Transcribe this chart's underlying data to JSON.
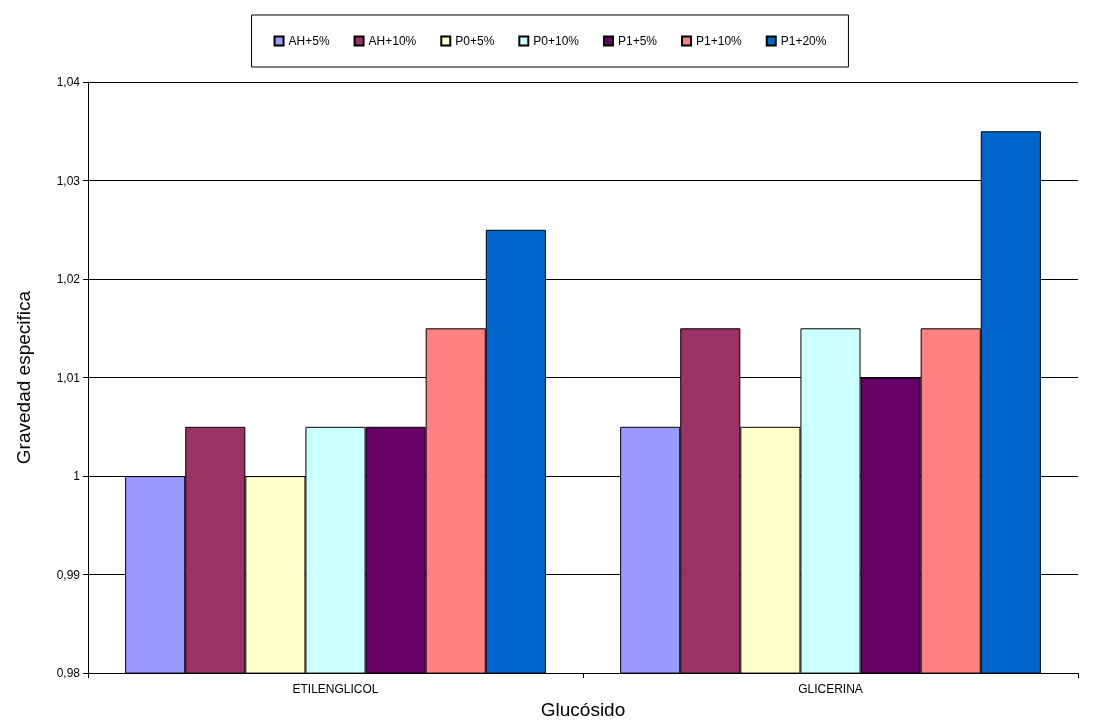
{
  "chart_data": {
    "type": "bar",
    "xlabel": "Glucósido",
    "ylabel": "Gravedad especifica",
    "categories": [
      "ETILENGLICOL",
      "GLICERINA"
    ],
    "series": [
      {
        "name": "AH+5%",
        "color": "#9999ff",
        "values": [
          1.0,
          1.005
        ]
      },
      {
        "name": "AH+10%",
        "color": "#993366",
        "values": [
          1.005,
          1.015
        ]
      },
      {
        "name": "P0+5%",
        "color": "#ffffcc",
        "values": [
          1.0,
          1.005
        ]
      },
      {
        "name": "P0+10%",
        "color": "#ccffff",
        "values": [
          1.005,
          1.015
        ]
      },
      {
        "name": "P1+5%",
        "color": "#660066",
        "values": [
          1.005,
          1.01
        ]
      },
      {
        "name": "P1+10%",
        "color": "#ff8080",
        "values": [
          1.015,
          1.015
        ]
      },
      {
        "name": "P1+20%",
        "color": "#0066cc",
        "values": [
          1.025,
          1.035
        ]
      }
    ],
    "ylim": [
      0.98,
      1.04
    ],
    "yticks": [
      {
        "value": 0.98,
        "label": "0,98"
      },
      {
        "value": 0.99,
        "label": "0,99"
      },
      {
        "value": 1,
        "label": "1"
      },
      {
        "value": 1.01,
        "label": "1,01"
      },
      {
        "value": 1.02,
        "label": "1,02"
      },
      {
        "value": 1.03,
        "label": "1,03"
      },
      {
        "value": 1.04,
        "label": "1,04"
      }
    ],
    "grid": "y",
    "legend": "top"
  }
}
